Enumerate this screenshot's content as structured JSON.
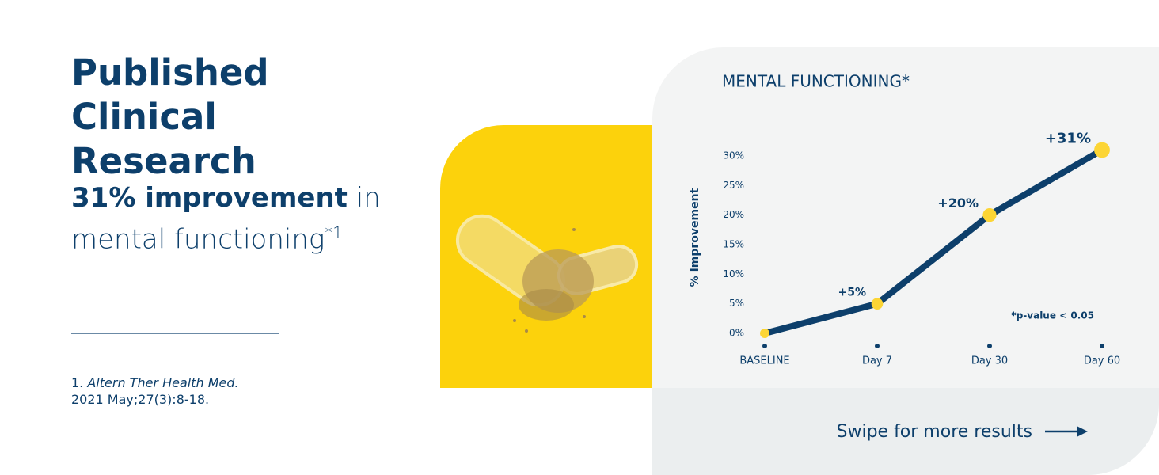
{
  "header": {
    "title": "Published Clinical Research",
    "highlight": "31% improvement",
    "rest": "in mental functioning",
    "superscript": "*1"
  },
  "reference": {
    "number": "1.",
    "journal": "Altern Ther Health Med.",
    "citation": "2021 May;27(3):8-18."
  },
  "chart_data": {
    "type": "line",
    "title": "MENTAL FUNCTIONING*",
    "y_label": "% Improvement",
    "categories": [
      "BASELINE",
      "Day 7",
      "Day 30",
      "Day 60"
    ],
    "values": [
      0,
      5,
      20,
      31
    ],
    "value_labels": [
      null,
      "+5%",
      "+20%",
      "+31%"
    ],
    "color": "#0d3f6b",
    "marker_color": "#fcd535",
    "ylim": [
      0,
      32
    ],
    "yticks": [
      {
        "value": 0,
        "label": "0%"
      },
      {
        "value": 5,
        "label": "5%"
      },
      {
        "value": 10,
        "label": "10%"
      },
      {
        "value": 15,
        "label": "15%"
      },
      {
        "value": 20,
        "label": "20%"
      },
      {
        "value": 25,
        "label": "25%"
      },
      {
        "value": 30,
        "label": "30%"
      }
    ],
    "annotation": "*p-value < 0.05"
  },
  "swipe": "Swipe for more results"
}
